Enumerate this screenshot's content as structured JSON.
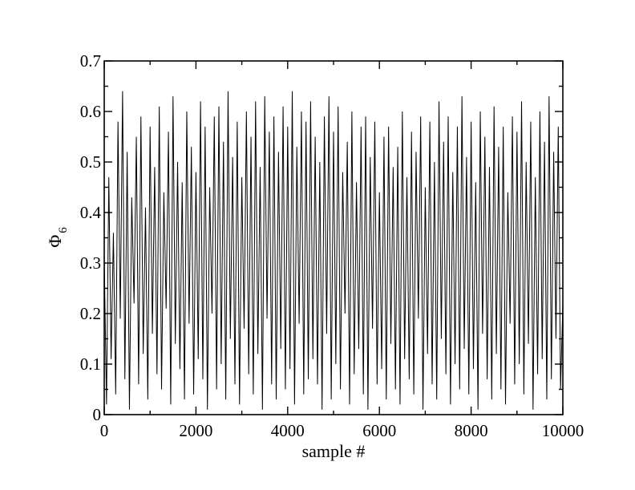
{
  "chart_data": {
    "type": "line",
    "title": "",
    "xlabel": "sample #",
    "ylabel_symbol": "Φ",
    "ylabel_subscript": "6",
    "xlim": [
      0,
      10000
    ],
    "ylim": [
      0,
      0.7
    ],
    "x_ticks": [
      0,
      2000,
      4000,
      6000,
      8000,
      10000
    ],
    "x_tick_labels": [
      "0",
      "2000",
      "4000",
      "6000",
      "8000",
      "10000"
    ],
    "y_ticks": [
      0,
      0.1,
      0.2,
      0.3,
      0.4,
      0.5,
      0.6,
      0.7
    ],
    "y_tick_labels": [
      "0",
      "0.1",
      "0.2",
      "0.3",
      "0.4",
      "0.5",
      "0.6",
      "0.7"
    ],
    "grid": false,
    "legend": "none",
    "line_color": "#000000",
    "series": [
      {
        "x_start": 0,
        "x_step": 50,
        "values": [
          0.31,
          0.02,
          0.47,
          0.11,
          0.36,
          0.04,
          0.58,
          0.19,
          0.64,
          0.07,
          0.52,
          0.01,
          0.43,
          0.22,
          0.55,
          0.06,
          0.59,
          0.12,
          0.41,
          0.03,
          0.57,
          0.16,
          0.49,
          0.08,
          0.61,
          0.05,
          0.44,
          0.21,
          0.56,
          0.02,
          0.63,
          0.14,
          0.5,
          0.09,
          0.46,
          0.03,
          0.6,
          0.18,
          0.53,
          0.04,
          0.48,
          0.11,
          0.62,
          0.07,
          0.57,
          0.01,
          0.45,
          0.2,
          0.59,
          0.05,
          0.61,
          0.1,
          0.54,
          0.03,
          0.64,
          0.15,
          0.51,
          0.06,
          0.58,
          0.02,
          0.47,
          0.17,
          0.6,
          0.08,
          0.55,
          0.04,
          0.62,
          0.12,
          0.49,
          0.01,
          0.63,
          0.19,
          0.56,
          0.06,
          0.59,
          0.03,
          0.52,
          0.13,
          0.61,
          0.05,
          0.57,
          0.09,
          0.64,
          0.02,
          0.53,
          0.18,
          0.6,
          0.04,
          0.58,
          0.07,
          0.62,
          0.11,
          0.55,
          0.06,
          0.5,
          0.01,
          0.59,
          0.16,
          0.63,
          0.03,
          0.56,
          0.1,
          0.61,
          0.05,
          0.48,
          0.2,
          0.54,
          0.02,
          0.6,
          0.08,
          0.46,
          0.13,
          0.57,
          0.04,
          0.59,
          0.01,
          0.51,
          0.17,
          0.58,
          0.06,
          0.44,
          0.09,
          0.55,
          0.03,
          0.57,
          0.14,
          0.49,
          0.05,
          0.53,
          0.02,
          0.6,
          0.11,
          0.47,
          0.07,
          0.56,
          0.04,
          0.52,
          0.19,
          0.59,
          0.01,
          0.45,
          0.12,
          0.58,
          0.06,
          0.5,
          0.03,
          0.62,
          0.15,
          0.54,
          0.08,
          0.59,
          0.02,
          0.48,
          0.1,
          0.57,
          0.05,
          0.63,
          0.13,
          0.51,
          0.04,
          0.58,
          0.09,
          0.46,
          0.01,
          0.6,
          0.16,
          0.55,
          0.07,
          0.49,
          0.03,
          0.61,
          0.12,
          0.53,
          0.05,
          0.57,
          0.02,
          0.44,
          0.18,
          0.59,
          0.06,
          0.56,
          0.1,
          0.62,
          0.04,
          0.5,
          0.14,
          0.58,
          0.01,
          0.47,
          0.08,
          0.6,
          0.11,
          0.54,
          0.03,
          0.63,
          0.07,
          0.52,
          0.15,
          0.57,
          0.05,
          0.22
        ]
      }
    ]
  }
}
